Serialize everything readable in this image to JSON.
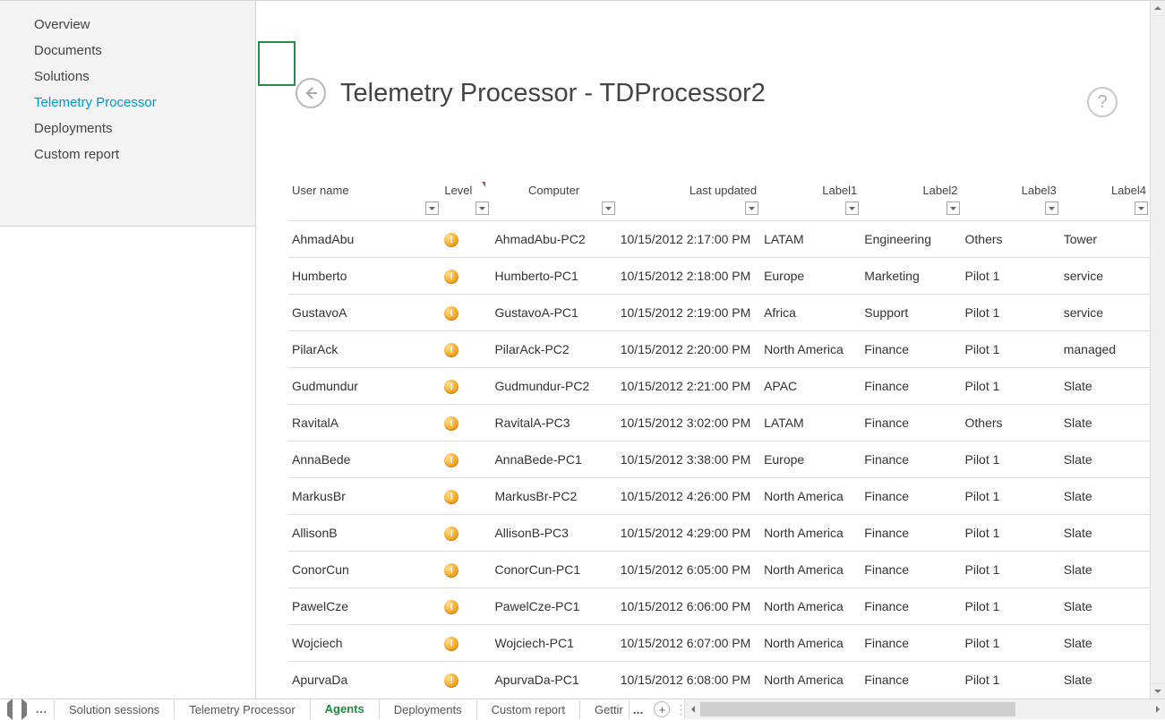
{
  "sidebar": {
    "items": [
      {
        "label": "Overview",
        "name": "sidebar-item-overview"
      },
      {
        "label": "Documents",
        "name": "sidebar-item-documents"
      },
      {
        "label": "Solutions",
        "name": "sidebar-item-solutions"
      },
      {
        "label": "Telemetry Processor",
        "name": "sidebar-item-telemetry-processor",
        "active": true
      },
      {
        "label": "Deployments",
        "name": "sidebar-item-deployments"
      },
      {
        "label": "Custom report",
        "name": "sidebar-item-custom-report"
      }
    ]
  },
  "page": {
    "title": "Telemetry Processor - TDProcessor2"
  },
  "table": {
    "columns": [
      {
        "key": "username",
        "label": "User name",
        "align": "left",
        "width": "col-user"
      },
      {
        "key": "level",
        "label": "Level",
        "align": "left",
        "sort": true,
        "width": "col-level"
      },
      {
        "key": "computer",
        "label": "Computer",
        "align": "center",
        "width": "col-comp"
      },
      {
        "key": "updated",
        "label": "Last updated",
        "align": "right",
        "width": "col-upd"
      },
      {
        "key": "label1",
        "label": "Label1",
        "align": "right",
        "width": "col-l1"
      },
      {
        "key": "label2",
        "label": "Label2",
        "align": "right",
        "width": "col-l2"
      },
      {
        "key": "label3",
        "label": "Label3",
        "align": "right",
        "width": "col-l3"
      },
      {
        "key": "label4",
        "label": "Label4",
        "align": "right",
        "width": "col-l4"
      }
    ],
    "rows": [
      {
        "username": "AhmadAbu",
        "computer": "AhmadAbu-PC2",
        "updated": "10/15/2012 2:17:00 PM",
        "label1": "LATAM",
        "label2": "Engineering",
        "label3": "Others",
        "label4": "Tower"
      },
      {
        "username": "Humberto",
        "computer": "Humberto-PC1",
        "updated": "10/15/2012 2:18:00 PM",
        "label1": "Europe",
        "label2": "Marketing",
        "label3": "Pilot 1",
        "label4": "service"
      },
      {
        "username": "GustavoA",
        "computer": "GustavoA-PC1",
        "updated": "10/15/2012 2:19:00 PM",
        "label1": "Africa",
        "label2": "Support",
        "label3": "Pilot 1",
        "label4": "service"
      },
      {
        "username": "PilarAck",
        "computer": "PilarAck-PC2",
        "updated": "10/15/2012 2:20:00 PM",
        "label1": "North America",
        "label2": "Finance",
        "label3": "Pilot 1",
        "label4": "managed"
      },
      {
        "username": "Gudmundur",
        "computer": "Gudmundur-PC2",
        "updated": "10/15/2012 2:21:00 PM",
        "label1": "APAC",
        "label2": "Finance",
        "label3": "Pilot 1",
        "label4": "Slate"
      },
      {
        "username": "RavitalA",
        "computer": "RavitalA-PC3",
        "updated": "10/15/2012 3:02:00 PM",
        "label1": "LATAM",
        "label2": "Finance",
        "label3": "Others",
        "label4": "Slate"
      },
      {
        "username": "AnnaBede",
        "computer": "AnnaBede-PC1",
        "updated": "10/15/2012 3:38:00 PM",
        "label1": "Europe",
        "label2": "Finance",
        "label3": "Pilot 1",
        "label4": "Slate"
      },
      {
        "username": "MarkusBr",
        "computer": "MarkusBr-PC2",
        "updated": "10/15/2012 4:26:00 PM",
        "label1": "North America",
        "label2": "Finance",
        "label3": "Pilot 1",
        "label4": "Slate"
      },
      {
        "username": "AllisonB",
        "computer": "AllisonB-PC3",
        "updated": "10/15/2012 4:29:00 PM",
        "label1": "North America",
        "label2": "Finance",
        "label3": "Pilot 1",
        "label4": "Slate"
      },
      {
        "username": "ConorCun",
        "computer": "ConorCun-PC1",
        "updated": "10/15/2012 6:05:00 PM",
        "label1": "North America",
        "label2": "Finance",
        "label3": "Pilot 1",
        "label4": "Slate"
      },
      {
        "username": "PawelCze",
        "computer": "PawelCze-PC1",
        "updated": "10/15/2012 6:06:00 PM",
        "label1": "North America",
        "label2": "Finance",
        "label3": "Pilot 1",
        "label4": "Slate"
      },
      {
        "username": "Wojciech",
        "computer": "Wojciech-PC1",
        "updated": "10/15/2012 6:07:00 PM",
        "label1": "North America",
        "label2": "Finance",
        "label3": "Pilot 1",
        "label4": "Slate"
      },
      {
        "username": "ApurvaDa",
        "computer": "ApurvaDa-PC1",
        "updated": "10/15/2012 6:08:00 PM",
        "label1": "North America",
        "label2": "Finance",
        "label3": "Pilot 1",
        "label4": "Slate"
      }
    ]
  },
  "sheets": {
    "tabs": [
      {
        "label": "Solution sessions"
      },
      {
        "label": "Telemetry Processor"
      },
      {
        "label": "Agents",
        "active": true
      },
      {
        "label": "Deployments"
      },
      {
        "label": "Custom report"
      },
      {
        "label": "Gettir",
        "trunc": true
      }
    ],
    "truncDots": "..."
  },
  "colors": {
    "accent": "#0099cc",
    "tabActive": "#1a8f3c",
    "cellBorder": "#2a8e4a",
    "levelIcon": "#f5a623"
  }
}
